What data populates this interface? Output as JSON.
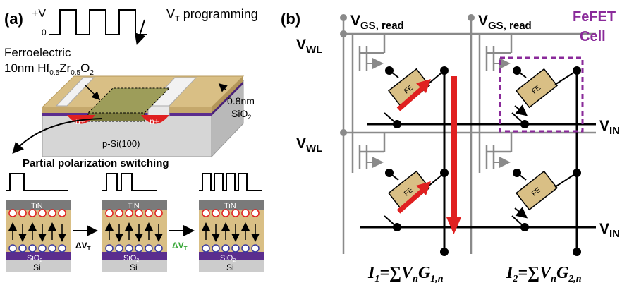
{
  "panel_a": {
    "label": "(a)",
    "pulse_high": "+V",
    "pulse_low": "0",
    "programming_label_v": "V",
    "programming_label_sub": "T",
    "programming_label_rest": " programming",
    "ferroelectric_line1": "Ferroelectric",
    "ferroelectric_line2": "10nm Hf",
    "ferroelectric_sub1": "0.5",
    "ferroelectric_mid": "Zr",
    "ferroelectric_sub2": "0.5",
    "ferroelectric_end": "O",
    "ferroelectric_sub3": "2",
    "oxide_thickness": "0.8nm",
    "oxide_label": "SiO",
    "oxide_sub": "2",
    "substrate_label": "p-Si(100)",
    "n_plus": "n+",
    "partial_title": "Partial polarization switching",
    "stack_top": "TiN",
    "stack_oxide": "SiO",
    "stack_oxide_sub": "2",
    "stack_bottom": "Si",
    "delta_vt": "ΔV",
    "delta_vt_sub": "T",
    "colors": {
      "tan": "#d9bf85",
      "purple": "#5b2d8e",
      "red": "#e02020",
      "green": "#3aa83a"
    }
  },
  "panel_b": {
    "label": "(b)",
    "vgs_read_main": "V",
    "vgs_read_sub": "GS, read",
    "vwl_main": "V",
    "vwl_sub": "WL",
    "vin_main": "V",
    "vin_sub": "IN",
    "cell_line1": "FeFET",
    "cell_line2": "Cell",
    "fe_label": "FE",
    "i1_main": "I",
    "i1_sub": "1",
    "i1_eq": "=∑V",
    "i1_n": "n",
    "i1_g": "G",
    "i1_gsub": "1,n",
    "i2_main": "I",
    "i2_sub": "2",
    "i2_eq": "=∑V",
    "i2_n": "n",
    "i2_g": "G",
    "i2_gsub": "2,n",
    "colors": {
      "cell_box": "#8a2a9a",
      "red": "#e02020",
      "gray": "#8a8a8a"
    }
  }
}
